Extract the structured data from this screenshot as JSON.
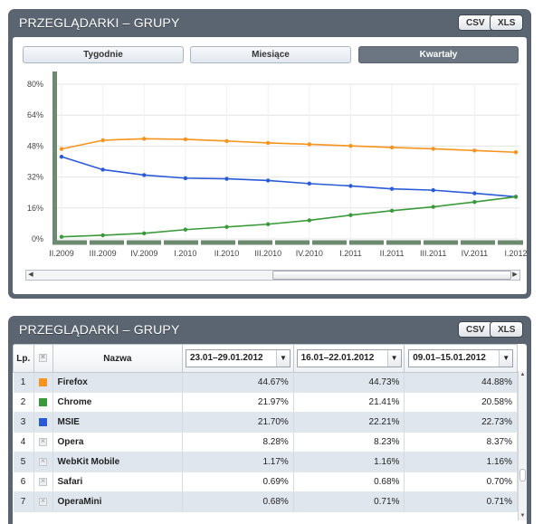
{
  "top_panel": {
    "title": "PRZEGLĄDARKI – GRUPY",
    "csv_label": "CSV",
    "xls_label": "XLS",
    "tabs": [
      {
        "label": "Tygodnie",
        "active": false
      },
      {
        "label": "Miesiące",
        "active": false
      },
      {
        "label": "Kwartały",
        "active": true
      }
    ]
  },
  "chart_data": {
    "type": "line",
    "title": "",
    "xlabel": "",
    "ylabel": "",
    "x": [
      "II.2009",
      "III.2009",
      "IV.2009",
      "I.2010",
      "II.2010",
      "III.2010",
      "IV.2010",
      "I.2011",
      "II.2011",
      "III.2011",
      "IV.2011",
      "I.2012"
    ],
    "ylim": [
      0,
      80
    ],
    "y_ticks": [
      "80%",
      "64%",
      "48%",
      "32%",
      "16%",
      "0%"
    ],
    "grid": true,
    "series": [
      {
        "color": "#f7941d",
        "values": [
          46.5,
          51.0,
          51.8,
          51.5,
          50.6,
          49.6,
          48.9,
          48.1,
          47.3,
          46.6,
          45.7,
          44.8
        ]
      },
      {
        "color": "#2a5bd7",
        "values": [
          42.5,
          35.8,
          33.0,
          31.4,
          31.1,
          30.2,
          28.6,
          27.4,
          25.9,
          25.2,
          23.6,
          21.8
        ]
      },
      {
        "color": "#3a9a3a",
        "values": [
          1.1,
          1.9,
          2.9,
          4.8,
          6.2,
          7.6,
          9.6,
          12.3,
          14.6,
          16.6,
          19.1,
          21.8
        ]
      }
    ]
  },
  "bottom_panel": {
    "title": "PRZEGLĄDARKI – GRUPY",
    "csv_label": "CSV",
    "xls_label": "XLS",
    "columns": {
      "lp": "Lp.",
      "name": "Nazwa",
      "period1": "23.01–29.01.2012",
      "period2": "16.01–22.01.2012",
      "period3": "09.01–15.01.2012"
    },
    "rows": [
      {
        "lp": "1",
        "name": "Firefox",
        "color": "#f7941d",
        "v1": "44.67%",
        "v2": "44.73%",
        "v3": "44.88%"
      },
      {
        "lp": "2",
        "name": "Chrome",
        "color": "#3a9a3a",
        "v1": "21.97%",
        "v2": "21.41%",
        "v3": "20.58%"
      },
      {
        "lp": "3",
        "name": "MSIE",
        "color": "#2a5bd7",
        "v1": "21.70%",
        "v2": "22.21%",
        "v3": "22.73%"
      },
      {
        "lp": "4",
        "name": "Opera",
        "color": "",
        "v1": "8.28%",
        "v2": "8.23%",
        "v3": "8.37%"
      },
      {
        "lp": "5",
        "name": "WebKit Mobile",
        "color": "",
        "v1": "1.17%",
        "v2": "1.16%",
        "v3": "1.16%"
      },
      {
        "lp": "6",
        "name": "Safari",
        "color": "",
        "v1": "0.69%",
        "v2": "0.68%",
        "v3": "0.70%"
      },
      {
        "lp": "7",
        "name": "OperaMini",
        "color": "",
        "v1": "0.68%",
        "v2": "0.71%",
        "v3": "0.71%"
      }
    ]
  }
}
